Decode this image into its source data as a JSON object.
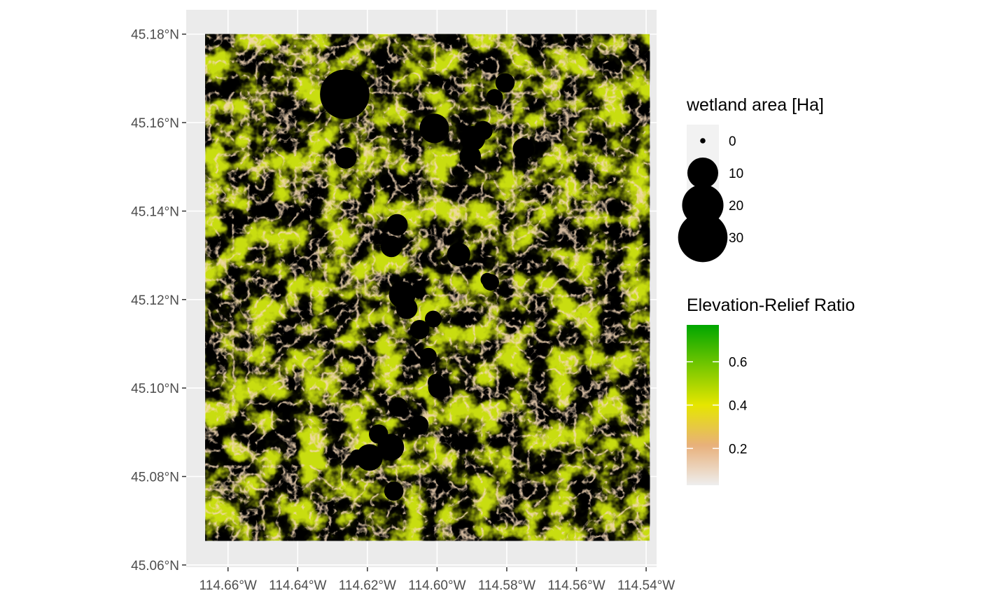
{
  "chart_data": {
    "type": "scatter",
    "title": "",
    "xlabel": "",
    "ylabel": "",
    "xlim": [
      -114.672,
      -114.537
    ],
    "ylim": [
      45.0595,
      45.1855
    ],
    "x_ticks": [
      {
        "value": -114.66,
        "label": "114.66°W"
      },
      {
        "value": -114.64,
        "label": "114.64°W"
      },
      {
        "value": -114.62,
        "label": "114.62°W"
      },
      {
        "value": -114.6,
        "label": "114.60°W"
      },
      {
        "value": -114.58,
        "label": "114.58°W"
      },
      {
        "value": -114.56,
        "label": "114.56°W"
      },
      {
        "value": -114.54,
        "label": "114.54°W"
      }
    ],
    "y_ticks": [
      {
        "value": 45.06,
        "label": "45.06°N"
      },
      {
        "value": 45.08,
        "label": "45.08°N"
      },
      {
        "value": 45.1,
        "label": "45.10°N"
      },
      {
        "value": 45.12,
        "label": "45.12°N"
      },
      {
        "value": 45.14,
        "label": "45.14°N"
      },
      {
        "value": 45.16,
        "label": "45.16°N"
      },
      {
        "value": 45.18,
        "label": "45.18°N"
      }
    ],
    "raster": {
      "name": "Elevation-Relief Ratio",
      "extent_x": [
        -114.6665,
        -114.539
      ],
      "extent_y": [
        45.0655,
        45.18
      ],
      "colors": [
        "#eeeeee",
        "#e8b07a",
        "#e6e600",
        "#00a600"
      ]
    },
    "points": [
      {
        "x": -114.6265,
        "y": 45.1664,
        "area": 30
      },
      {
        "x": -114.6005,
        "y": 45.1696,
        "area": 0.5
      },
      {
        "x": -114.5805,
        "y": 45.169,
        "area": 3
      },
      {
        "x": -114.5835,
        "y": 45.1657,
        "area": 2
      },
      {
        "x": -114.6008,
        "y": 45.1587,
        "area": 9
      },
      {
        "x": -114.5868,
        "y": 45.1582,
        "area": 3
      },
      {
        "x": -114.5882,
        "y": 45.1572,
        "area": 1
      },
      {
        "x": -114.5898,
        "y": 45.1564,
        "area": 6
      },
      {
        "x": -114.5905,
        "y": 45.1524,
        "area": 4
      },
      {
        "x": -114.5752,
        "y": 45.1541,
        "area": 4
      },
      {
        "x": -114.6262,
        "y": 45.152,
        "area": 4
      },
      {
        "x": -114.6115,
        "y": 45.1369,
        "area": 4
      },
      {
        "x": -114.6131,
        "y": 45.132,
        "area": 4
      },
      {
        "x": -114.5938,
        "y": 45.1302,
        "area": 5
      },
      {
        "x": -114.5856,
        "y": 45.1245,
        "area": 1
      },
      {
        "x": -114.5846,
        "y": 45.1239,
        "area": 2
      },
      {
        "x": -114.6052,
        "y": 45.1217,
        "area": 1
      },
      {
        "x": -114.61,
        "y": 45.1211,
        "area": 7
      },
      {
        "x": -114.6087,
        "y": 45.118,
        "area": 4
      },
      {
        "x": -114.6011,
        "y": 45.1156,
        "area": 2
      },
      {
        "x": -114.605,
        "y": 45.1132,
        "area": 3
      },
      {
        "x": -114.6025,
        "y": 45.1072,
        "area": 2
      },
      {
        "x": -114.6003,
        "y": 45.1013,
        "area": 2
      },
      {
        "x": -114.5995,
        "y": 45.1001,
        "area": 4
      },
      {
        "x": -114.6112,
        "y": 45.0957,
        "area": 3
      },
      {
        "x": -114.6052,
        "y": 45.0916,
        "area": 3
      },
      {
        "x": -114.6168,
        "y": 45.0896,
        "area": 3
      },
      {
        "x": -114.6133,
        "y": 45.0866,
        "area": 7
      },
      {
        "x": -114.623,
        "y": 45.0846,
        "area": 1
      },
      {
        "x": -114.6194,
        "y": 45.0843,
        "area": 7
      },
      {
        "x": -114.6124,
        "y": 45.0767,
        "area": 3
      }
    ],
    "legend_size": {
      "title": "wetland area [Ha]",
      "entries": [
        {
          "label": "0",
          "value": 0
        },
        {
          "label": "10",
          "value": 10
        },
        {
          "label": "20",
          "value": 20
        },
        {
          "label": "30",
          "value": 30
        }
      ]
    },
    "legend_color": {
      "title": "Elevation-Relief Ratio",
      "range": [
        0.03,
        0.77
      ],
      "ticks": [
        {
          "value": 0.2,
          "label": "0.2"
        },
        {
          "value": 0.4,
          "label": "0.4"
        },
        {
          "value": 0.6,
          "label": "0.6"
        }
      ],
      "colors": [
        "#eeeeee",
        "#e8b07a",
        "#e6e600",
        "#00a600"
      ]
    },
    "grid": true,
    "legend_position": "right"
  }
}
